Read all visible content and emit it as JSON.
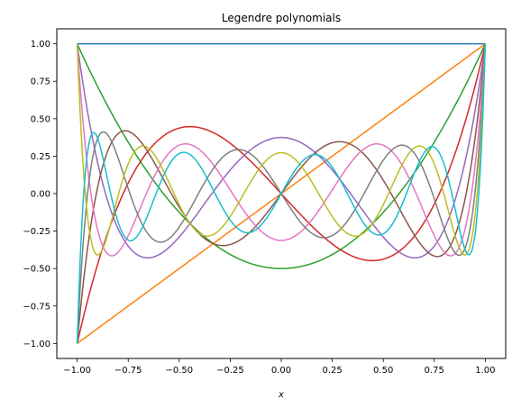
{
  "chart_data": {
    "type": "line",
    "title": "Legendre polynomials",
    "xlabel": "x",
    "ylabel": "",
    "xlim": [
      -1.1,
      1.1
    ],
    "ylim": [
      -1.1,
      1.1
    ],
    "xticks": [
      -1.0,
      -0.75,
      -0.5,
      -0.25,
      0.0,
      0.25,
      0.5,
      0.75,
      1.0
    ],
    "xtick_labels": [
      "−1.00",
      "−0.75",
      "−0.50",
      "−0.25",
      "0.00",
      "0.25",
      "0.50",
      "0.75",
      "1.00"
    ],
    "yticks": [
      -1.0,
      -0.75,
      -0.5,
      -0.25,
      0.0,
      0.25,
      0.5,
      0.75,
      1.0
    ],
    "ytick_labels": [
      "−1.00",
      "−0.75",
      "−0.50",
      "−0.25",
      "0.00",
      "0.25",
      "0.50",
      "0.75",
      "1.00"
    ],
    "grid": false,
    "legend": "none",
    "x": [
      -1.0,
      -0.9,
      -0.8,
      -0.7,
      -0.6,
      -0.5,
      -0.4,
      -0.3,
      -0.2,
      -0.1,
      0.0,
      0.1,
      0.2,
      0.3,
      0.4,
      0.5,
      0.6,
      0.7,
      0.8,
      0.9,
      1.0
    ],
    "series": [
      {
        "degree": 0,
        "color": "#1f77b4",
        "values": [
          1,
          1,
          1,
          1,
          1,
          1,
          1,
          1,
          1,
          1,
          1,
          1,
          1,
          1,
          1,
          1,
          1,
          1,
          1,
          1,
          1
        ]
      },
      {
        "degree": 1,
        "color": "#ff7f0e",
        "values": [
          -1,
          -0.9,
          -0.8,
          -0.7,
          -0.6,
          -0.5,
          -0.4,
          -0.3,
          -0.2,
          -0.1,
          0,
          0.1,
          0.2,
          0.3,
          0.4,
          0.5,
          0.6,
          0.7,
          0.8,
          0.9,
          1
        ]
      },
      {
        "degree": 2,
        "color": "#2ca02c",
        "values": [
          1,
          0.715,
          0.46,
          0.235,
          0.04,
          -0.125,
          -0.26,
          -0.365,
          -0.44,
          -0.485,
          -0.5,
          -0.485,
          -0.44,
          -0.365,
          -0.26,
          -0.125,
          0.04,
          0.235,
          0.46,
          0.715,
          1
        ]
      },
      {
        "degree": 3,
        "color": "#d62728",
        "values": [
          -1,
          -0.4725,
          -0.08,
          0.1925,
          0.36,
          0.4375,
          0.44,
          0.3825,
          0.28,
          0.1475,
          0,
          -0.1475,
          -0.28,
          -0.3825,
          -0.44,
          -0.4375,
          -0.36,
          -0.1925,
          0.08,
          0.4725,
          1
        ]
      },
      {
        "degree": 4,
        "color": "#9467bd",
        "values": [
          1,
          0.2079,
          -0.233,
          -0.4121,
          -0.408,
          -0.2891,
          -0.113,
          0.0729,
          0.232,
          0.3379,
          0.375,
          0.3379,
          0.232,
          0.0729,
          -0.113,
          -0.2891,
          -0.408,
          -0.4121,
          -0.233,
          0.2079,
          1
        ]
      },
      {
        "degree": 5,
        "color": "#8c564b",
        "values": [
          -1,
          0.0411,
          0.3995,
          0.3652,
          0.1526,
          -0.0898,
          -0.2677,
          -0.3454,
          -0.3075,
          -0.1788,
          0,
          0.1788,
          0.3075,
          0.3454,
          0.2677,
          0.0898,
          -0.1526,
          -0.3652,
          -0.3995,
          -0.0411,
          1
        ]
      },
      {
        "degree": 6,
        "color": "#e377c2",
        "values": [
          1,
          -0.1597,
          -0.3918,
          -0.1253,
          0.1657,
          0.3232,
          0.2926,
          0.1293,
          -0.0748,
          -0.2255,
          -0.3125,
          -0.2255,
          -0.0748,
          0.1293,
          0.2926,
          0.3232,
          0.1657,
          -0.1253,
          -0.3918,
          -0.1597,
          1
        ]
      },
      {
        "degree": 7,
        "color": "#7f7f7f",
        "values": [
          -1,
          0.3119,
          0.1946,
          -0.2044,
          -0.2939,
          -0.0734,
          0.1736,
          0.2958,
          0.2546,
          0.1008,
          0,
          -0.1008,
          -0.2546,
          -0.2958,
          -0.1736,
          0.0734,
          0.2939,
          0.2044,
          -0.1946,
          -0.3119,
          1
        ]
      },
      {
        "degree": 8,
        "color": "#bcbd22",
        "values": [
          1,
          -0.3992,
          0.0146,
          0.2906,
          0.0644,
          -0.2423,
          -0.2623,
          -0.0388,
          0.1872,
          0.2728,
          0.2734,
          0.2728,
          0.1872,
          -0.0388,
          -0.2623,
          -0.2423,
          0.0644,
          0.2906,
          0.0146,
          -0.3992,
          1
        ]
      },
      {
        "degree": 9,
        "color": "#17becf",
        "values": [
          -1,
          0.3858,
          -0.2004,
          -0.2287,
          0.1525,
          0.2679,
          0.0448,
          -0.2099,
          -0.2643,
          -0.1237,
          0,
          0.1237,
          0.2643,
          0.2099,
          -0.0448,
          -0.2679,
          -0.1525,
          0.2287,
          0.2004,
          -0.3858,
          1
        ]
      }
    ]
  }
}
